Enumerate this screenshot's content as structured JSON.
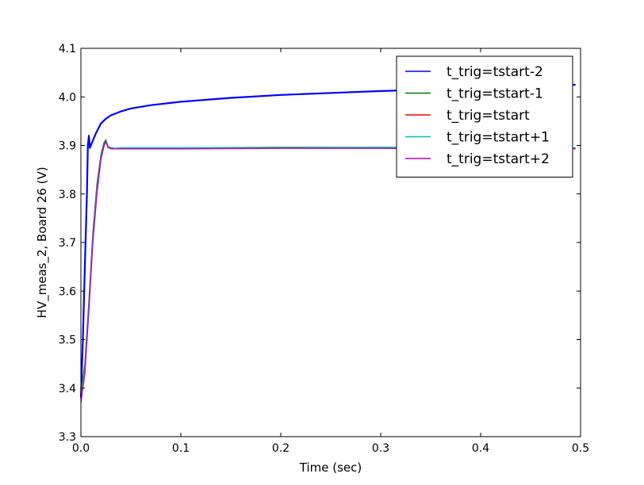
{
  "chart_data": {
    "type": "line",
    "title": "",
    "xlabel": "Time (sec)",
    "ylabel": "HV_meas_2, Board 26 (V)",
    "xlim": [
      0.0,
      0.5
    ],
    "ylim": [
      3.3,
      4.1
    ],
    "xticks": [
      0.0,
      0.1,
      0.2,
      0.3,
      0.4,
      0.5
    ],
    "xtick_labels": [
      "0.0",
      "0.1",
      "0.2",
      "0.3",
      "0.4",
      "0.5"
    ],
    "yticks": [
      3.3,
      3.4,
      3.5,
      3.6,
      3.7,
      3.8,
      3.9,
      4.0,
      4.1
    ],
    "ytick_labels": [
      "3.3",
      "3.4",
      "3.5",
      "3.6",
      "3.7",
      "3.8",
      "3.9",
      "4.0",
      "4.1"
    ],
    "grid": false,
    "legend_position": "top-right",
    "series": [
      {
        "name": "t_trig=tstart-2",
        "color": "#0000ff",
        "x": [
          0.0,
          0.002,
          0.004,
          0.006,
          0.007,
          0.008,
          0.009,
          0.01,
          0.012,
          0.015,
          0.02,
          0.025,
          0.03,
          0.04,
          0.05,
          0.07,
          0.1,
          0.15,
          0.2,
          0.25,
          0.3,
          0.35,
          0.4,
          0.45,
          0.495
        ],
        "y": [
          3.38,
          3.5,
          3.65,
          3.8,
          3.9,
          3.92,
          3.895,
          3.9,
          3.91,
          3.925,
          3.945,
          3.955,
          3.962,
          3.97,
          3.976,
          3.983,
          3.99,
          3.998,
          4.004,
          4.008,
          4.012,
          4.015,
          4.018,
          4.021,
          4.025
        ]
      },
      {
        "name": "t_trig=tstart-1",
        "color": "#008000",
        "x": [
          0.0,
          0.004,
          0.008,
          0.012,
          0.016,
          0.02,
          0.023,
          0.025,
          0.027,
          0.03,
          0.035,
          0.04,
          0.1,
          0.2,
          0.3,
          0.4,
          0.495
        ],
        "y": [
          3.39,
          3.45,
          3.58,
          3.72,
          3.82,
          3.88,
          3.905,
          3.912,
          3.898,
          3.895,
          3.894,
          3.895,
          3.895,
          3.896,
          3.896,
          3.895,
          3.895
        ]
      },
      {
        "name": "t_trig=tstart",
        "color": "#ff0000",
        "x": [
          0.0,
          0.004,
          0.008,
          0.012,
          0.016,
          0.02,
          0.023,
          0.025,
          0.027,
          0.03,
          0.035,
          0.04,
          0.1,
          0.2,
          0.3,
          0.4,
          0.495
        ],
        "y": [
          3.38,
          3.44,
          3.57,
          3.71,
          3.81,
          3.875,
          3.9,
          3.91,
          3.898,
          3.894,
          3.894,
          3.894,
          3.894,
          3.895,
          3.895,
          3.894,
          3.894
        ]
      },
      {
        "name": "t_trig=tstart+1",
        "color": "#00bfbf",
        "x": [
          0.0,
          0.004,
          0.008,
          0.012,
          0.016,
          0.02,
          0.023,
          0.025,
          0.027,
          0.03,
          0.035,
          0.04,
          0.1,
          0.2,
          0.3,
          0.4,
          0.495
        ],
        "y": [
          3.38,
          3.44,
          3.57,
          3.71,
          3.81,
          3.875,
          3.9,
          3.91,
          3.897,
          3.894,
          3.894,
          3.895,
          3.895,
          3.895,
          3.896,
          3.895,
          3.895
        ]
      },
      {
        "name": "t_trig=tstart+2",
        "color": "#bf00bf",
        "x": [
          0.0,
          0.004,
          0.008,
          0.012,
          0.016,
          0.02,
          0.023,
          0.025,
          0.027,
          0.03,
          0.035,
          0.04,
          0.1,
          0.2,
          0.3,
          0.4,
          0.495
        ],
        "y": [
          3.37,
          3.43,
          3.56,
          3.7,
          3.8,
          3.87,
          3.898,
          3.908,
          3.896,
          3.893,
          3.893,
          3.893,
          3.893,
          3.894,
          3.894,
          3.893,
          3.893
        ]
      }
    ]
  }
}
